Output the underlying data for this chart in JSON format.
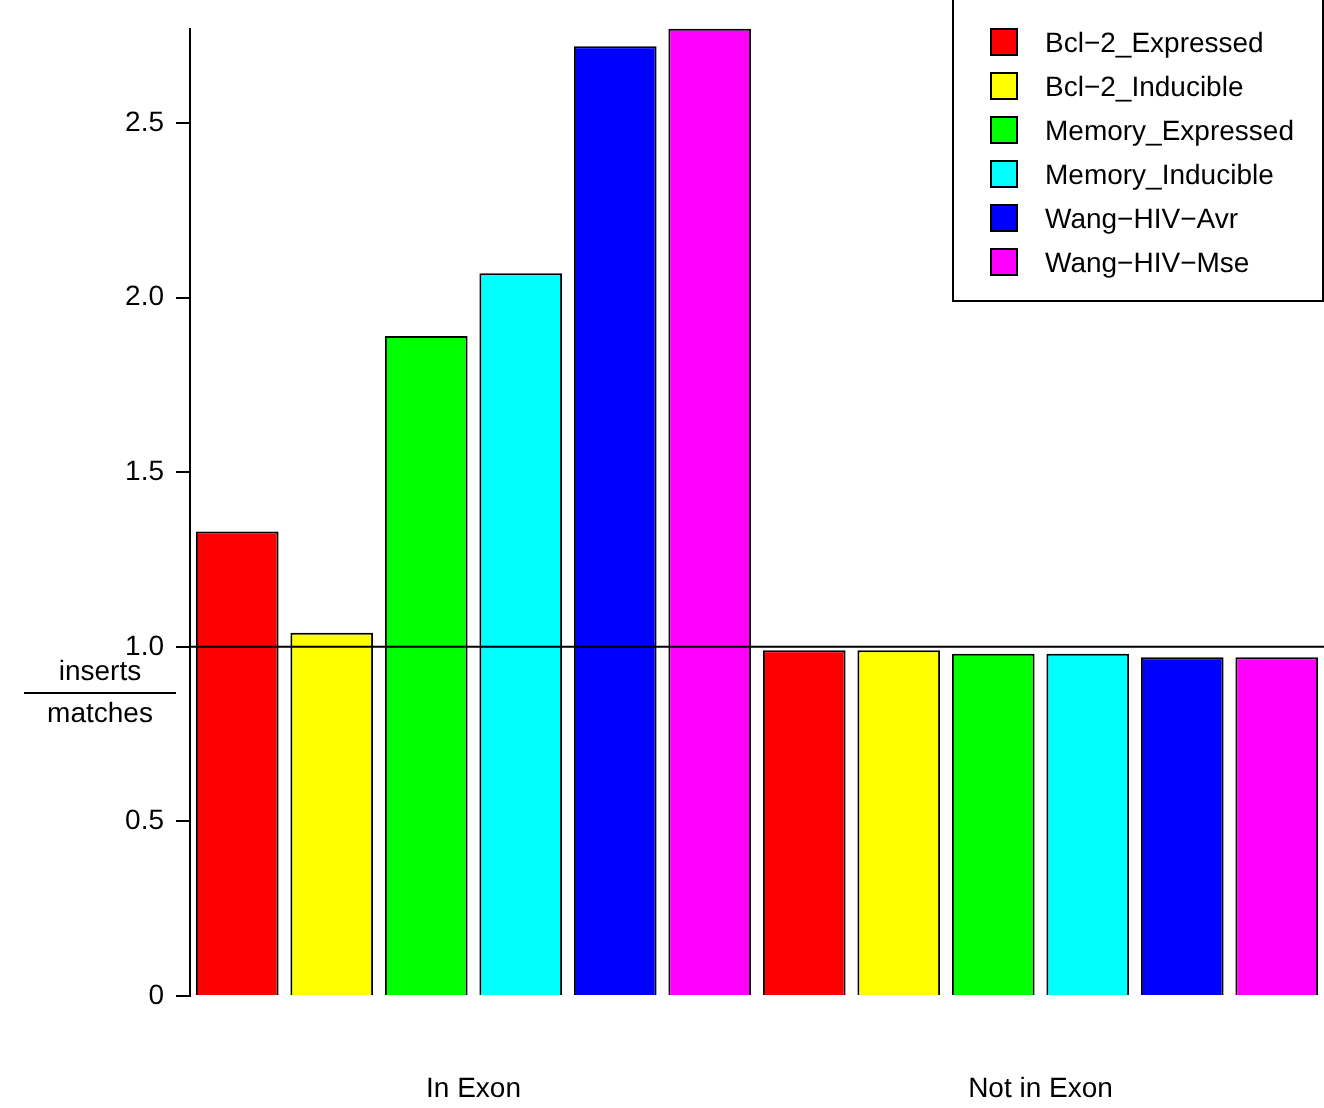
{
  "chart_data": {
    "type": "bar",
    "ylabel": "inserts\nmatches",
    "categories": [
      "In Exon",
      "Not in Exon"
    ],
    "series": [
      {
        "name": "Bcl−2_Expressed",
        "color": "#ff0000",
        "values": [
          1.33,
          0.99
        ]
      },
      {
        "name": "Bcl−2_Inducible",
        "color": "#ffff00",
        "values": [
          1.04,
          0.99
        ]
      },
      {
        "name": "Memory_Expressed",
        "color": "#00ff00",
        "values": [
          1.89,
          0.98
        ]
      },
      {
        "name": "Memory_Inducible",
        "color": "#00ffff",
        "values": [
          2.07,
          0.98
        ]
      },
      {
        "name": "Wang−HIV−Avr",
        "color": "#0000ff",
        "values": [
          2.72,
          0.97
        ]
      },
      {
        "name": "Wang−HIV−Mse",
        "color": "#ff00ff",
        "values": [
          2.77,
          0.97
        ]
      }
    ],
    "ylim": [
      0,
      2.77
    ],
    "yticks": [
      0,
      {
        "value": 0.5,
        "label": "0.5"
      },
      {
        "value": 1,
        "label": "1.0"
      },
      {
        "value": 1.5,
        "label": "1.5"
      },
      {
        "value": 2,
        "label": "2.0"
      },
      {
        "value": 2.5,
        "label": "2.5"
      }
    ],
    "ref_lines": [
      {
        "axis": "y",
        "value": 1,
        "color": "#000000"
      }
    ],
    "grid": false,
    "legend": "top right"
  }
}
